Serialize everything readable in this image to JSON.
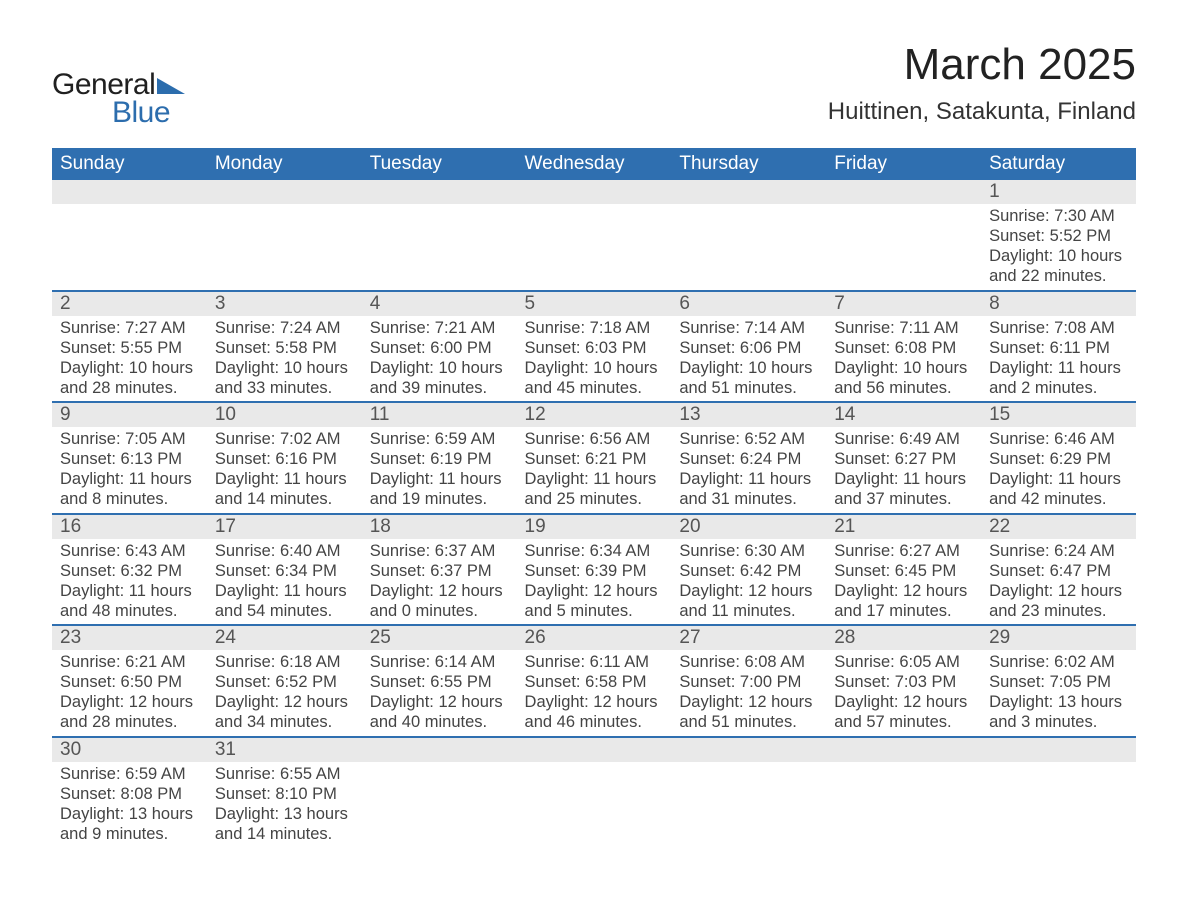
{
  "logo": {
    "text_general": "General",
    "text_blue": "Blue",
    "triangle_color": "#2c6dad"
  },
  "title": {
    "month": "March 2025",
    "location": "Huittinen, Satakunta, Finland"
  },
  "colors": {
    "header_bg": "#2f6fb0",
    "header_fg": "#ffffff",
    "date_row_bg": "#e9e9e9",
    "row_divider": "#2f6fb0",
    "text": "#333333",
    "date_text": "#555555"
  },
  "day_names": [
    "Sunday",
    "Monday",
    "Tuesday",
    "Wednesday",
    "Thursday",
    "Friday",
    "Saturday"
  ],
  "weeks": [
    [
      null,
      null,
      null,
      null,
      null,
      null,
      {
        "d": "1",
        "sr": "Sunrise: 7:30 AM",
        "ss": "Sunset: 5:52 PM",
        "dl1": "Daylight: 10 hours",
        "dl2": "and 22 minutes."
      }
    ],
    [
      {
        "d": "2",
        "sr": "Sunrise: 7:27 AM",
        "ss": "Sunset: 5:55 PM",
        "dl1": "Daylight: 10 hours",
        "dl2": "and 28 minutes."
      },
      {
        "d": "3",
        "sr": "Sunrise: 7:24 AM",
        "ss": "Sunset: 5:58 PM",
        "dl1": "Daylight: 10 hours",
        "dl2": "and 33 minutes."
      },
      {
        "d": "4",
        "sr": "Sunrise: 7:21 AM",
        "ss": "Sunset: 6:00 PM",
        "dl1": "Daylight: 10 hours",
        "dl2": "and 39 minutes."
      },
      {
        "d": "5",
        "sr": "Sunrise: 7:18 AM",
        "ss": "Sunset: 6:03 PM",
        "dl1": "Daylight: 10 hours",
        "dl2": "and 45 minutes."
      },
      {
        "d": "6",
        "sr": "Sunrise: 7:14 AM",
        "ss": "Sunset: 6:06 PM",
        "dl1": "Daylight: 10 hours",
        "dl2": "and 51 minutes."
      },
      {
        "d": "7",
        "sr": "Sunrise: 7:11 AM",
        "ss": "Sunset: 6:08 PM",
        "dl1": "Daylight: 10 hours",
        "dl2": "and 56 minutes."
      },
      {
        "d": "8",
        "sr": "Sunrise: 7:08 AM",
        "ss": "Sunset: 6:11 PM",
        "dl1": "Daylight: 11 hours",
        "dl2": "and 2 minutes."
      }
    ],
    [
      {
        "d": "9",
        "sr": "Sunrise: 7:05 AM",
        "ss": "Sunset: 6:13 PM",
        "dl1": "Daylight: 11 hours",
        "dl2": "and 8 minutes."
      },
      {
        "d": "10",
        "sr": "Sunrise: 7:02 AM",
        "ss": "Sunset: 6:16 PM",
        "dl1": "Daylight: 11 hours",
        "dl2": "and 14 minutes."
      },
      {
        "d": "11",
        "sr": "Sunrise: 6:59 AM",
        "ss": "Sunset: 6:19 PM",
        "dl1": "Daylight: 11 hours",
        "dl2": "and 19 minutes."
      },
      {
        "d": "12",
        "sr": "Sunrise: 6:56 AM",
        "ss": "Sunset: 6:21 PM",
        "dl1": "Daylight: 11 hours",
        "dl2": "and 25 minutes."
      },
      {
        "d": "13",
        "sr": "Sunrise: 6:52 AM",
        "ss": "Sunset: 6:24 PM",
        "dl1": "Daylight: 11 hours",
        "dl2": "and 31 minutes."
      },
      {
        "d": "14",
        "sr": "Sunrise: 6:49 AM",
        "ss": "Sunset: 6:27 PM",
        "dl1": "Daylight: 11 hours",
        "dl2": "and 37 minutes."
      },
      {
        "d": "15",
        "sr": "Sunrise: 6:46 AM",
        "ss": "Sunset: 6:29 PM",
        "dl1": "Daylight: 11 hours",
        "dl2": "and 42 minutes."
      }
    ],
    [
      {
        "d": "16",
        "sr": "Sunrise: 6:43 AM",
        "ss": "Sunset: 6:32 PM",
        "dl1": "Daylight: 11 hours",
        "dl2": "and 48 minutes."
      },
      {
        "d": "17",
        "sr": "Sunrise: 6:40 AM",
        "ss": "Sunset: 6:34 PM",
        "dl1": "Daylight: 11 hours",
        "dl2": "and 54 minutes."
      },
      {
        "d": "18",
        "sr": "Sunrise: 6:37 AM",
        "ss": "Sunset: 6:37 PM",
        "dl1": "Daylight: 12 hours",
        "dl2": "and 0 minutes."
      },
      {
        "d": "19",
        "sr": "Sunrise: 6:34 AM",
        "ss": "Sunset: 6:39 PM",
        "dl1": "Daylight: 12 hours",
        "dl2": "and 5 minutes."
      },
      {
        "d": "20",
        "sr": "Sunrise: 6:30 AM",
        "ss": "Sunset: 6:42 PM",
        "dl1": "Daylight: 12 hours",
        "dl2": "and 11 minutes."
      },
      {
        "d": "21",
        "sr": "Sunrise: 6:27 AM",
        "ss": "Sunset: 6:45 PM",
        "dl1": "Daylight: 12 hours",
        "dl2": "and 17 minutes."
      },
      {
        "d": "22",
        "sr": "Sunrise: 6:24 AM",
        "ss": "Sunset: 6:47 PM",
        "dl1": "Daylight: 12 hours",
        "dl2": "and 23 minutes."
      }
    ],
    [
      {
        "d": "23",
        "sr": "Sunrise: 6:21 AM",
        "ss": "Sunset: 6:50 PM",
        "dl1": "Daylight: 12 hours",
        "dl2": "and 28 minutes."
      },
      {
        "d": "24",
        "sr": "Sunrise: 6:18 AM",
        "ss": "Sunset: 6:52 PM",
        "dl1": "Daylight: 12 hours",
        "dl2": "and 34 minutes."
      },
      {
        "d": "25",
        "sr": "Sunrise: 6:14 AM",
        "ss": "Sunset: 6:55 PM",
        "dl1": "Daylight: 12 hours",
        "dl2": "and 40 minutes."
      },
      {
        "d": "26",
        "sr": "Sunrise: 6:11 AM",
        "ss": "Sunset: 6:58 PM",
        "dl1": "Daylight: 12 hours",
        "dl2": "and 46 minutes."
      },
      {
        "d": "27",
        "sr": "Sunrise: 6:08 AM",
        "ss": "Sunset: 7:00 PM",
        "dl1": "Daylight: 12 hours",
        "dl2": "and 51 minutes."
      },
      {
        "d": "28",
        "sr": "Sunrise: 6:05 AM",
        "ss": "Sunset: 7:03 PM",
        "dl1": "Daylight: 12 hours",
        "dl2": "and 57 minutes."
      },
      {
        "d": "29",
        "sr": "Sunrise: 6:02 AM",
        "ss": "Sunset: 7:05 PM",
        "dl1": "Daylight: 13 hours",
        "dl2": "and 3 minutes."
      }
    ],
    [
      {
        "d": "30",
        "sr": "Sunrise: 6:59 AM",
        "ss": "Sunset: 8:08 PM",
        "dl1": "Daylight: 13 hours",
        "dl2": "and 9 minutes."
      },
      {
        "d": "31",
        "sr": "Sunrise: 6:55 AM",
        "ss": "Sunset: 8:10 PM",
        "dl1": "Daylight: 13 hours",
        "dl2": "and 14 minutes."
      },
      null,
      null,
      null,
      null,
      null
    ]
  ]
}
